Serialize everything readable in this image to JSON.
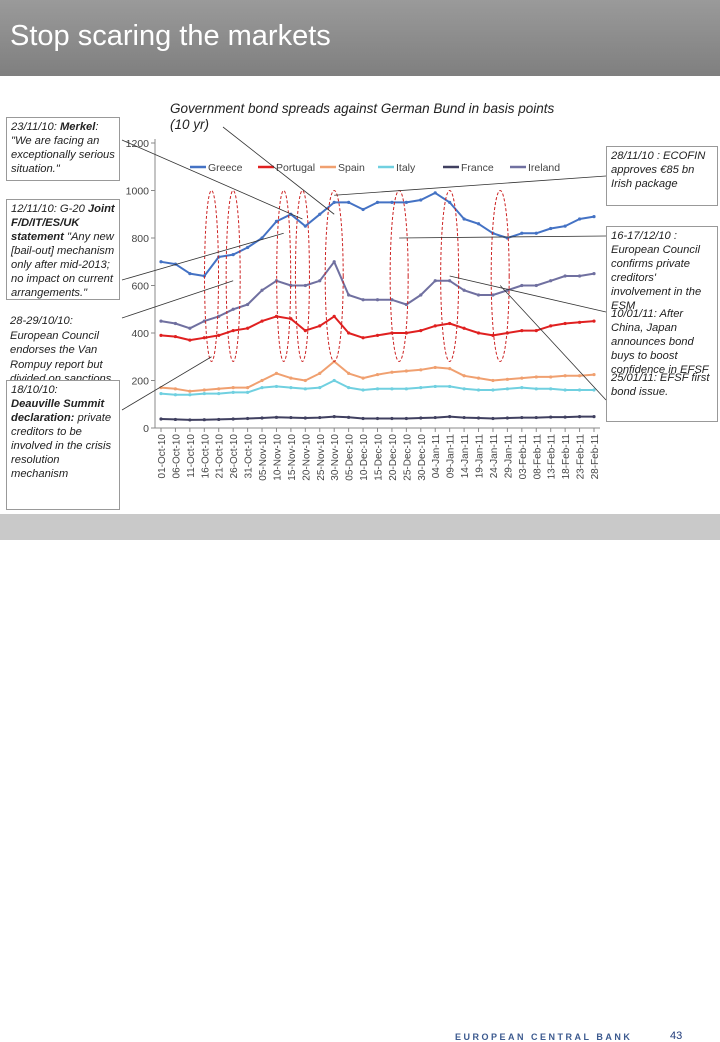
{
  "page": {
    "title": "Stop scaring the markets",
    "footer_brand": "EUROPEAN CENTRAL BANK",
    "page_number": "43"
  },
  "annotations": {
    "merkel": {
      "date": "23/11/10: ",
      "who": "Merkel",
      "text": ": \"We are facing an exceptionally serious situation.\""
    },
    "g20_date": "12/11/10: G-20 ",
    "g20_bold": "Joint F/D/IT/ES/UK statement",
    "g20_text": " \"Any new [bail-out] mechanism only after mid-2013; no impact on current arrangements.\"",
    "council_date": "28-29/10/10: ",
    "council_bold": "European Council",
    "council_text": " endorses the Van Rompuy report but divided on sanctions.",
    "deauville_date": "18/10/10: ",
    "deauville_bold": "Deauville Summit declaration:",
    "deauville_text": " private creditors to be involved in the crisis resolution mechanism",
    "ecofin": "28/11/10 : ECOFIN approves €85 bn Irish package",
    "right_lines": [
      "16-17/12/10 : European Council confirms private creditors' involvement in the ESM",
      "10/01/11: After China, Japan announces bond buys to boost confidence in EFSF",
      "25/01/11: EFSF first bond issue."
    ]
  },
  "chart_data": {
    "type": "line",
    "title": "Government bond spreads against German Bund in basis points (10 yr)",
    "ylim": [
      0,
      1200
    ],
    "yticks": [
      0,
      200,
      400,
      600,
      800,
      1000,
      1200
    ],
    "grid": false,
    "legend_position": "top",
    "x": [
      "01-Oct-10",
      "06-Oct-10",
      "11-Oct-10",
      "16-Oct-10",
      "21-Oct-10",
      "26-Oct-10",
      "31-Oct-10",
      "05-Nov-10",
      "10-Nov-10",
      "15-Nov-10",
      "20-Nov-10",
      "25-Nov-10",
      "30-Nov-10",
      "05-Dec-10",
      "10-Dec-10",
      "15-Dec-10",
      "20-Dec-10",
      "25-Dec-10",
      "30-Dec-10",
      "04-Jan-11",
      "09-Jan-11",
      "14-Jan-11",
      "19-Jan-11",
      "24-Jan-11",
      "29-Jan-11",
      "03-Feb-11",
      "08-Feb-11",
      "13-Feb-11",
      "18-Feb-11",
      "23-Feb-11",
      "28-Feb-11"
    ],
    "series": [
      {
        "name": "Greece",
        "color": "#4472c4",
        "values": [
          700,
          690,
          650,
          640,
          720,
          730,
          760,
          800,
          870,
          900,
          850,
          900,
          950,
          950,
          920,
          950,
          950,
          950,
          960,
          990,
          950,
          880,
          860,
          820,
          800,
          820,
          820,
          840,
          850,
          880,
          890
        ]
      },
      {
        "name": "Portugal",
        "color": "#e02020",
        "values": [
          390,
          385,
          370,
          380,
          390,
          410,
          420,
          450,
          470,
          460,
          410,
          430,
          470,
          400,
          380,
          390,
          400,
          400,
          410,
          430,
          440,
          420,
          400,
          390,
          400,
          410,
          410,
          430,
          440,
          445,
          450
        ]
      },
      {
        "name": "Spain",
        "color": "#f0a070",
        "values": [
          170,
          165,
          155,
          160,
          165,
          170,
          170,
          200,
          230,
          210,
          200,
          230,
          280,
          230,
          210,
          225,
          235,
          240,
          245,
          255,
          250,
          220,
          210,
          200,
          205,
          210,
          215,
          215,
          220,
          220,
          225
        ]
      },
      {
        "name": "Italy",
        "color": "#70d0e0",
        "values": [
          145,
          140,
          140,
          145,
          145,
          150,
          150,
          170,
          175,
          170,
          165,
          170,
          200,
          170,
          160,
          165,
          165,
          165,
          170,
          175,
          175,
          165,
          160,
          160,
          165,
          170,
          165,
          165,
          160,
          160,
          160
        ]
      },
      {
        "name": "France",
        "color": "#404060",
        "values": [
          38,
          36,
          34,
          35,
          36,
          38,
          40,
          42,
          45,
          44,
          42,
          44,
          48,
          45,
          40,
          40,
          40,
          40,
          42,
          44,
          48,
          44,
          42,
          40,
          42,
          44,
          44,
          46,
          46,
          48,
          48
        ]
      },
      {
        "name": "Ireland",
        "color": "#7070a0",
        "values": [
          450,
          440,
          420,
          450,
          470,
          500,
          520,
          580,
          620,
          600,
          600,
          620,
          700,
          560,
          540,
          540,
          540,
          520,
          560,
          620,
          620,
          580,
          560,
          560,
          580,
          600,
          600,
          620,
          640,
          640,
          650
        ]
      }
    ]
  }
}
